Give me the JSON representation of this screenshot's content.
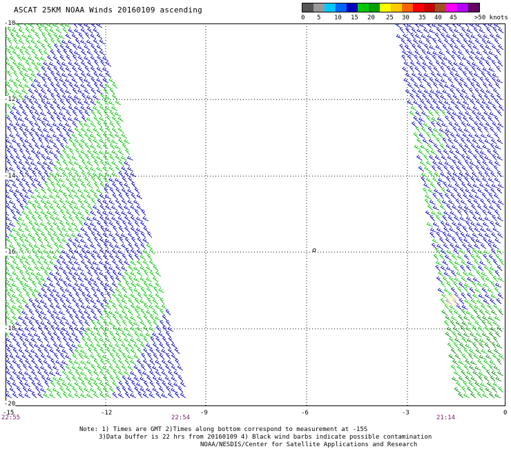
{
  "header": {
    "title": "ASCAT 25KM NOAA Winds 20160109 ascending"
  },
  "legend": {
    "colors": [
      "#555555",
      "#999999",
      "#00c8ff",
      "#0064ff",
      "#0000c0",
      "#00c800",
      "#00a000",
      "#ffff00",
      "#ffc800",
      "#ff6400",
      "#ff0000",
      "#c80000",
      "#a05020",
      "#ff00ff",
      "#b400ff",
      "#640064"
    ],
    "labels": [
      "0",
      "5",
      "10",
      "15",
      "20",
      "25",
      "30",
      "35",
      "40",
      "45",
      ">50 knots"
    ]
  },
  "axes": {
    "lat_labels": [
      "-10",
      "-12",
      "-14",
      "-16",
      "-18",
      "-20"
    ],
    "lon_labels": [
      "-15",
      "-12",
      "-9",
      "-6",
      "-3",
      "0"
    ]
  },
  "times": {
    "t1": "22:55",
    "t2": "22:54",
    "t3": "21:14"
  },
  "notes": {
    "line1": "Note: 1) Times are GMT 2)Times along bottom correspond to measurement at -15S",
    "line2": "3)Data buffer is 22 hrs from 20160109 4) Black wind barbs indicate possible contamination",
    "line3": "NOAA/NESDIS/Center for Satellite Applications and Research"
  }
}
